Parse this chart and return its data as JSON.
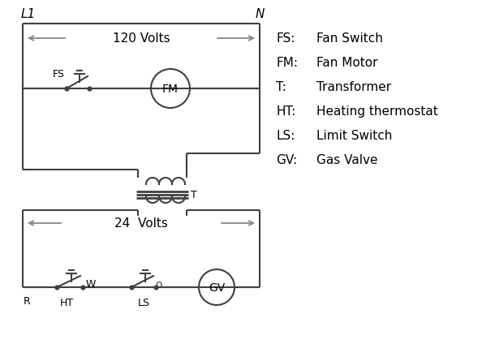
{
  "bg_color": "#ffffff",
  "line_color": "#404040",
  "arrow_color": "#888888",
  "text_color": "#000000",
  "legend_items": [
    [
      "FS:",
      "Fan Switch"
    ],
    [
      "FM:",
      "Fan Motor"
    ],
    [
      "T:",
      "Transformer"
    ],
    [
      "HT:",
      "Heating thermostat"
    ],
    [
      "LS:",
      "Limit Switch"
    ],
    [
      "GV:",
      "Gas Valve"
    ]
  ],
  "volts_120_text": "120 Volts",
  "volts_24_text": "24  Volts",
  "L1_label": "L1",
  "N_label": "N",
  "R_label": "R",
  "W_label": "W",
  "HT_label": "HT",
  "LS_label": "LS",
  "T_label": "T",
  "FS_label": "FS",
  "FM_label": "FM",
  "GV_label": "GV"
}
